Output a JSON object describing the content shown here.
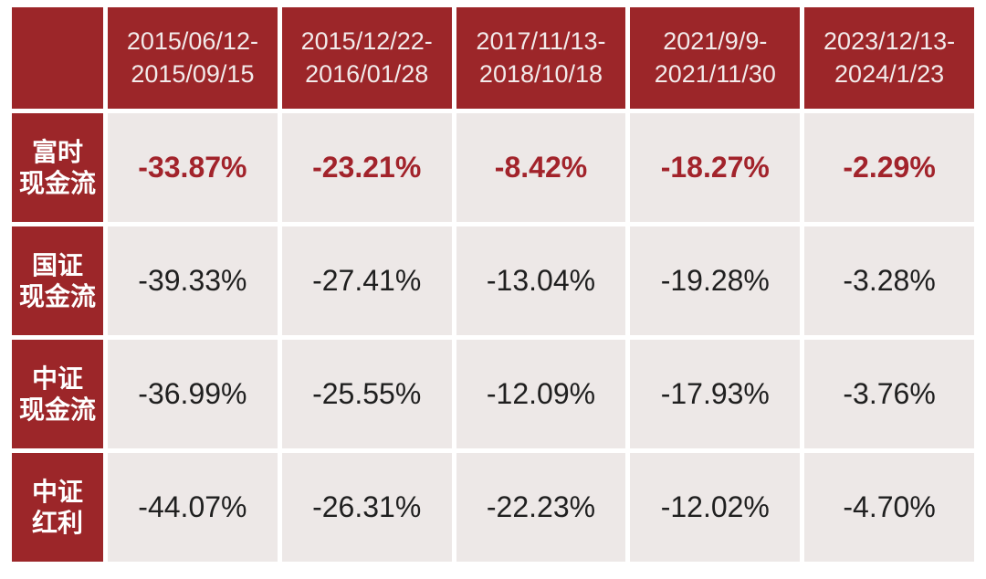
{
  "colors": {
    "header_bg": "#9C2629",
    "cell_bg": "#EDE8E7",
    "highlight_value_text": "#A2232B",
    "normal_value_text": "#1F1F1F",
    "gap": "#FFFFFF",
    "header_text": "#F2EAEA",
    "label_text": "#FFFFFF"
  },
  "table": {
    "corner_label": "",
    "periods": [
      {
        "line1": "2015/06/12-",
        "line2": "2015/09/15"
      },
      {
        "line1": "2015/12/22-",
        "line2": "2016/01/28"
      },
      {
        "line1": "2017/11/13-",
        "line2": "2018/10/18"
      },
      {
        "line1": "2021/9/9-",
        "line2": "2021/11/30"
      },
      {
        "line1": "2023/12/13-",
        "line2": "2024/1/23"
      }
    ],
    "rows": [
      {
        "label_line1": "富时",
        "label_line2": "现金流",
        "highlighted": true,
        "values": [
          "-33.87%",
          "-23.21%",
          "-8.42%",
          "-18.27%",
          "-2.29%"
        ]
      },
      {
        "label_line1": "国证",
        "label_line2": "现金流",
        "highlighted": false,
        "values": [
          "-39.33%",
          "-27.41%",
          "-13.04%",
          "-19.28%",
          "-3.28%"
        ]
      },
      {
        "label_line1": "中证",
        "label_line2": "现金流",
        "highlighted": false,
        "values": [
          "-36.99%",
          "-25.55%",
          "-12.09%",
          "-17.93%",
          "-3.76%"
        ]
      },
      {
        "label_line1": "中证",
        "label_line2": "红利",
        "highlighted": false,
        "values": [
          "-44.07%",
          "-26.31%",
          "-22.23%",
          "-12.02%",
          "-4.70%"
        ]
      }
    ]
  },
  "chart_data": {
    "type": "table",
    "title": "",
    "columns": [
      "2015/06/12-2015/09/15",
      "2015/12/22-2016/01/28",
      "2017/11/13-2018/10/18",
      "2021/9/9-2021/11/30",
      "2023/12/13-2024/1/23"
    ],
    "row_labels": [
      "富时现金流",
      "国证现金流",
      "中证现金流",
      "中证红利"
    ],
    "values": [
      [
        -33.87,
        -23.21,
        -8.42,
        -18.27,
        -2.29
      ],
      [
        -39.33,
        -27.41,
        -13.04,
        -19.28,
        -3.28
      ],
      [
        -36.99,
        -25.55,
        -12.09,
        -17.93,
        -3.76
      ],
      [
        -44.07,
        -26.31,
        -22.23,
        -12.02,
        -4.7
      ]
    ],
    "unit": "%",
    "highlighted_row": "富时现金流"
  }
}
